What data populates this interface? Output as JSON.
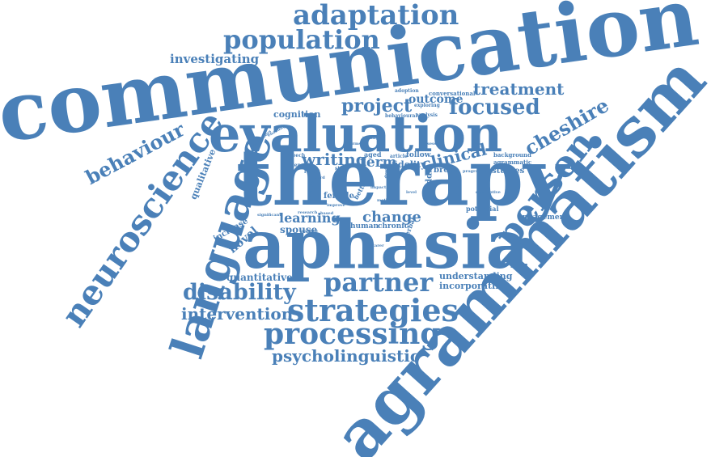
{
  "colors": {
    "word": "#4a80b8",
    "background": "#ffffff"
  },
  "words": {
    "communication": "communication",
    "agrammatism": "agrammatism",
    "therapy": "therapy",
    "aphasia": "aphasia",
    "evaluation": "evaluation",
    "language": "language",
    "neuroscience": "neuroscience",
    "person": "person",
    "adaptation": "adaptation",
    "population": "population",
    "strategies": "strategies",
    "processing": "processing",
    "partner": "partner",
    "disability": "disability",
    "behaviour": "behaviour",
    "cheshire": "cheshire",
    "focused": "focused",
    "treatment": "treatment",
    "project": "project",
    "intervention": "intervention",
    "psycholinguistic": "psycholinguistic",
    "clinical": "clinical",
    "writing": "writing",
    "change": "change",
    "learning": "learning",
    "investigating": "investigating",
    "term": "term",
    "outcome": "outcome",
    "novel": "novel",
    "quantitative": "quantitative",
    "understanding": "understanding",
    "incorporating": "incorporating",
    "cognition": "cognition",
    "qualitative": "qualitative",
    "increase": "increase",
    "spouse": "spouse",
    "female": "female",
    "fidelity": "fidelity",
    "studies": "studies",
    "agrammatic": "agrammatic",
    "broca": "broca",
    "middle": "middle",
    "potential": "potential",
    "engagement": "engagement",
    "human": "human",
    "chronic": "chronic",
    "conversational": "conversational",
    "aged": "aged",
    "follow": "follow",
    "background": "background",
    "adoption": "adoption",
    "exploring": "exploring",
    "behavioural": "behavioural",
    "analysis": "analysis",
    "article": "article",
    "speech": "speech",
    "evidence": "evidence",
    "result": "result",
    "study": "study",
    "better": "better",
    "verbal": "verbal",
    "programme": "programme",
    "significant": "significant",
    "research": "research",
    "based": "based",
    "analyse": "analyse",
    "enabling": "enabling",
    "facilitators": "facilitators",
    "talking": "talking",
    "dyads": "dyads",
    "enhance": "enhance",
    "production": "production",
    "session": "session",
    "method": "method",
    "improve": "improve",
    "descriptive": "descriptive",
    "forms": "forms",
    "word": "word",
    "impact": "impact",
    "level": "level",
    "carer": "carer"
  }
}
